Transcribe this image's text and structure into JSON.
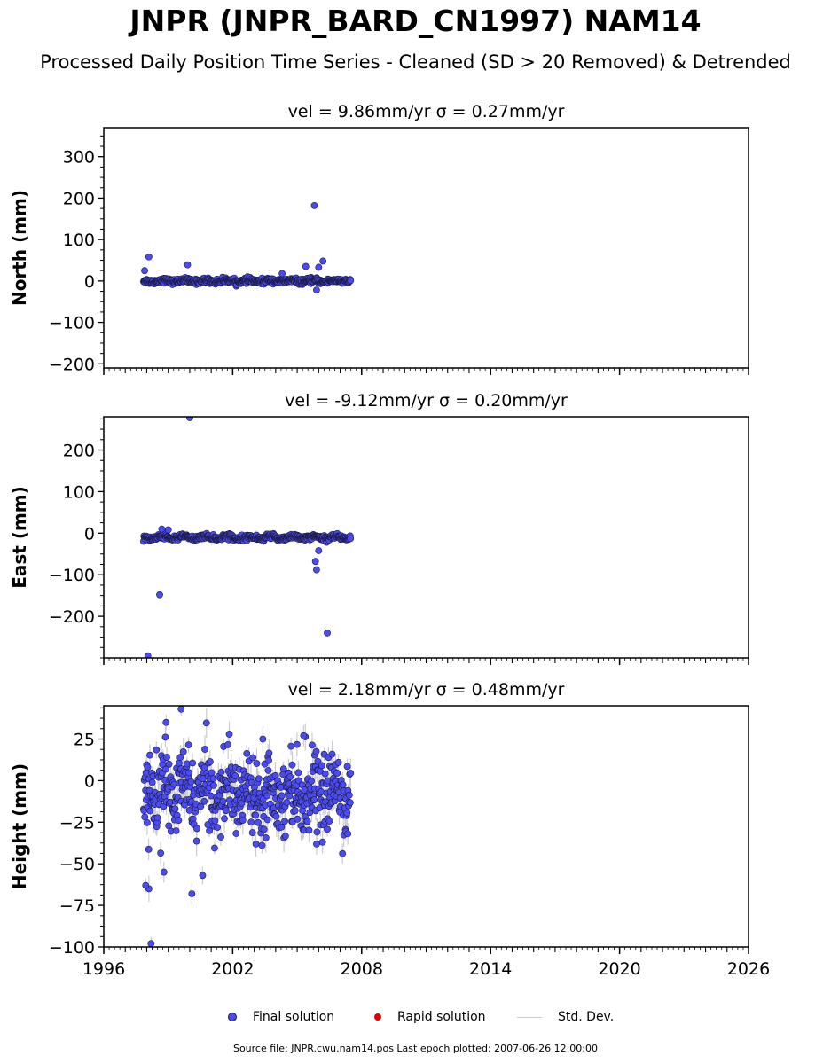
{
  "title": "JNPR (JNPR_BARD_CN1997) NAM14",
  "subtitle": "Processed Daily Position Time Series - Cleaned (SD > 20 Removed) & Detrended",
  "footer": "Source file: JNPR.cwu.nam14.pos  Last epoch plotted: 2007-06-26 12:00:00",
  "legend": {
    "items": [
      {
        "label": "Final solution",
        "color": "#4b4bf2",
        "kind": "dot"
      },
      {
        "label": "Rapid solution",
        "color": "#e00000",
        "kind": "dot"
      },
      {
        "label": "Std. Dev.",
        "color": "#cccccc",
        "kind": "line"
      }
    ]
  },
  "colors": {
    "final": "#4b4bf2",
    "final_edge": "#1a1a40",
    "rapid": "#e00000",
    "std": "#cccccc"
  },
  "chart_data": [
    {
      "type": "scatter",
      "panel_title": "vel = 9.86mm/yr   σ = 0.27mm/yr",
      "ylabel": "North (mm)",
      "xlim": [
        1996,
        2026
      ],
      "ylim": [
        -210,
        370
      ],
      "yticks": [
        -200,
        -100,
        0,
        100,
        200,
        300
      ],
      "xticks": [
        1996,
        2002,
        2008,
        2014,
        2020,
        2026
      ],
      "x_start": 1997.85,
      "x_end": 2007.48,
      "series": [
        {
          "name": "Final solution",
          "base": 0,
          "noise": 3,
          "std": 3,
          "trend_amp": 2
        }
      ],
      "outliers": [
        [
          1998.1,
          58
        ],
        [
          1997.9,
          25
        ],
        [
          1999.9,
          39
        ],
        [
          2005.8,
          182
        ],
        [
          2006.2,
          48
        ],
        [
          2005.9,
          -22
        ],
        [
          2006.0,
          33
        ],
        [
          2005.4,
          35
        ],
        [
          2004.3,
          18
        ]
      ]
    },
    {
      "type": "scatter",
      "panel_title": "vel = -9.12mm/yr   σ = 0.20mm/yr",
      "ylabel": "East (mm)",
      "xlim": [
        1996,
        2026
      ],
      "ylim": [
        -300,
        280
      ],
      "yticks": [
        -200,
        -100,
        0,
        100,
        200
      ],
      "xticks": [
        1996,
        2002,
        2008,
        2014,
        2020,
        2026
      ],
      "x_start": 1997.85,
      "x_end": 2007.48,
      "series": [
        {
          "name": "Final solution",
          "base": -10,
          "noise": 3,
          "std": 3,
          "trend_amp": 3
        }
      ],
      "outliers": [
        [
          2000.0,
          278
        ],
        [
          1998.6,
          -148
        ],
        [
          1998.05,
          -295
        ],
        [
          2006.4,
          -240
        ],
        [
          2005.9,
          -88
        ],
        [
          2005.85,
          -68
        ],
        [
          2006.0,
          -42
        ],
        [
          1998.7,
          10
        ],
        [
          1999.0,
          8
        ]
      ]
    },
    {
      "type": "scatter",
      "panel_title": "vel = 2.18mm/yr   σ = 0.48mm/yr",
      "ylabel": "Height (mm)",
      "xlim": [
        1996,
        2026
      ],
      "ylim": [
        -100,
        45
      ],
      "yticks": [
        -100,
        -75,
        -50,
        -25,
        0,
        25
      ],
      "xticks": [
        1996,
        2002,
        2008,
        2014,
        2020,
        2026
      ],
      "x_start": 1997.85,
      "x_end": 2007.48,
      "series": [
        {
          "name": "Final solution",
          "base": -7,
          "noise": 11,
          "std": 6,
          "trend_amp": 6
        }
      ],
      "outliers": [
        [
          1998.2,
          -98
        ],
        [
          1999.6,
          43
        ],
        [
          1998.9,
          35
        ],
        [
          2000.1,
          -68
        ],
        [
          1998.1,
          -65
        ],
        [
          1997.95,
          -63
        ],
        [
          1998.8,
          -55
        ],
        [
          2000.6,
          -57
        ],
        [
          2005.3,
          27
        ],
        [
          2003.4,
          25
        ]
      ]
    }
  ]
}
